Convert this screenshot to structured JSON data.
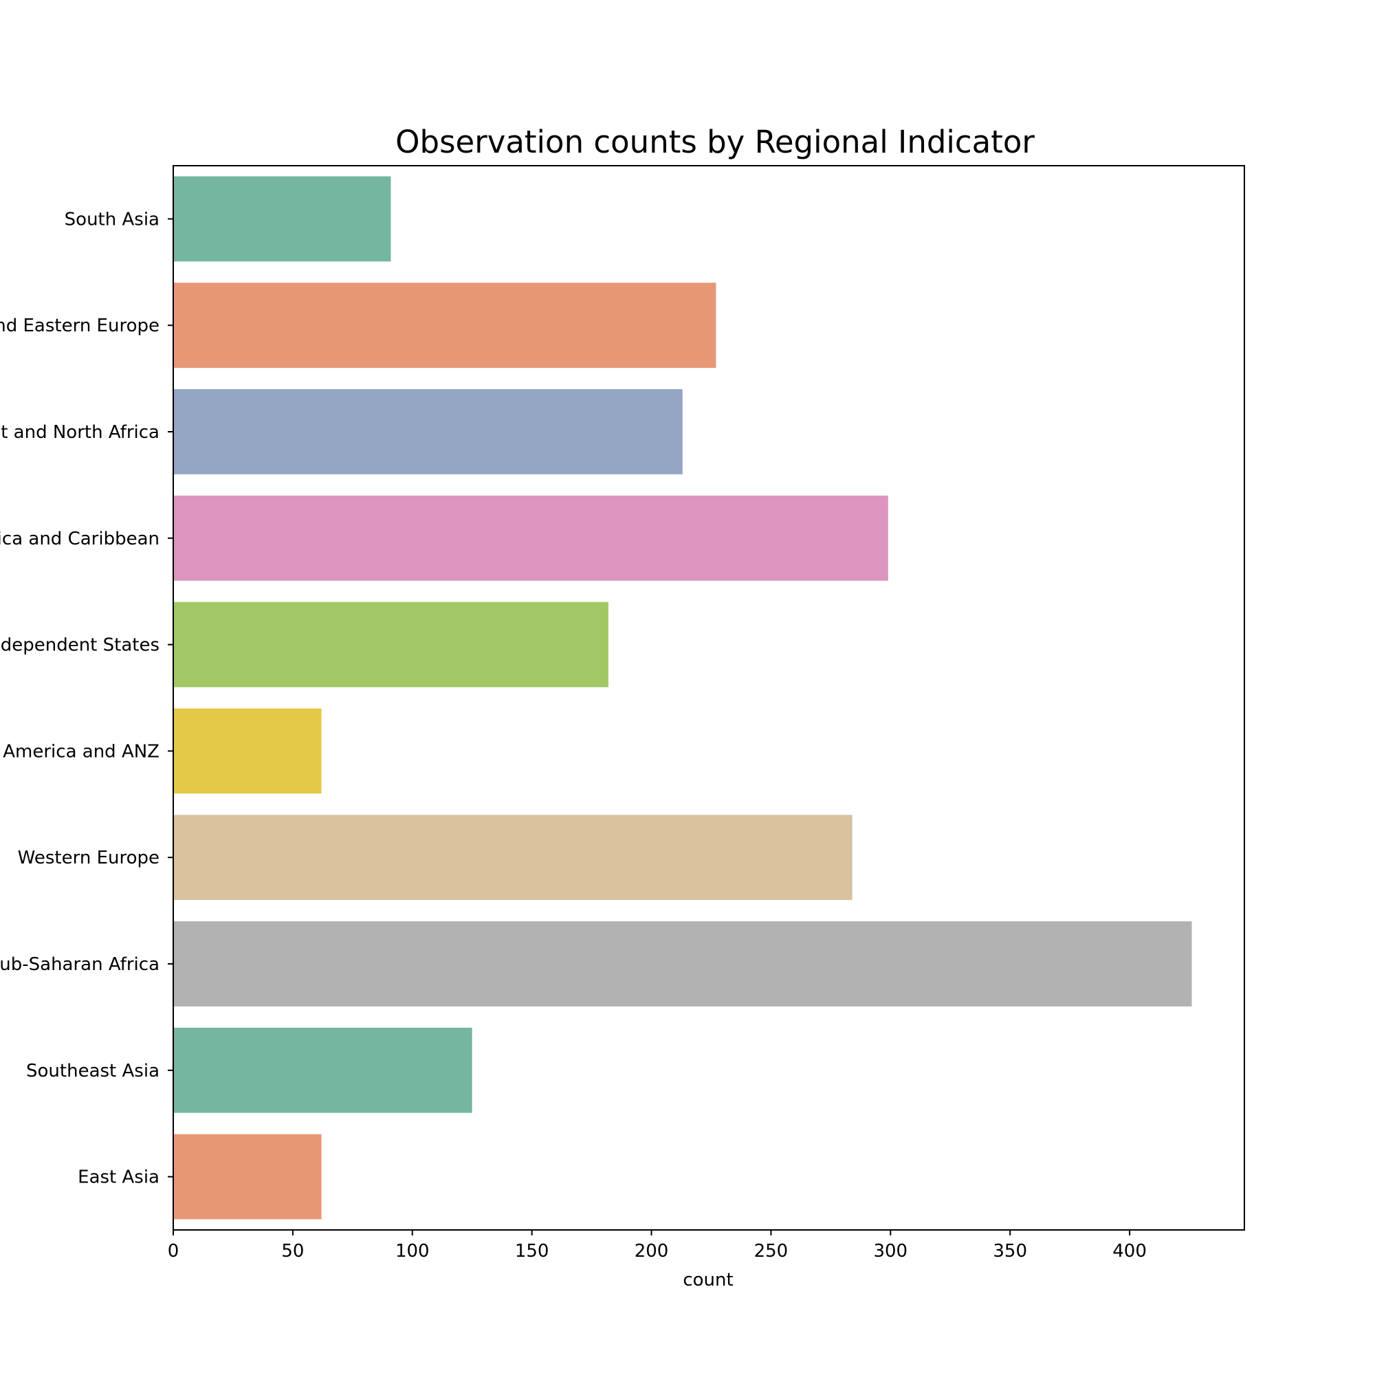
{
  "chart_data": {
    "type": "bar",
    "orientation": "horizontal",
    "title": "Observation counts by Regional Indicator",
    "xlabel": "count",
    "ylabel": "",
    "xlim": [
      0,
      448
    ],
    "x_ticks": [
      0,
      50,
      100,
      150,
      200,
      250,
      300,
      350,
      400
    ],
    "grid": false,
    "categories": [
      "South Asia",
      "Central and Eastern Europe",
      "Middle East and North Africa",
      "Latin America and Caribbean",
      "Commonwealth of Independent States",
      "North America and ANZ",
      "Western Europe",
      "Sub-Saharan Africa",
      "Southeast Asia",
      "East Asia"
    ],
    "values": [
      91,
      227,
      213,
      299,
      182,
      62,
      284,
      426,
      125,
      62
    ],
    "colors": [
      "#75b6a0",
      "#e89775",
      "#95a5c4",
      "#dc96bf",
      "#a2c865",
      "#e3c947",
      "#dac29e",
      "#b2b2b2",
      "#75b6a0",
      "#e89775"
    ]
  }
}
